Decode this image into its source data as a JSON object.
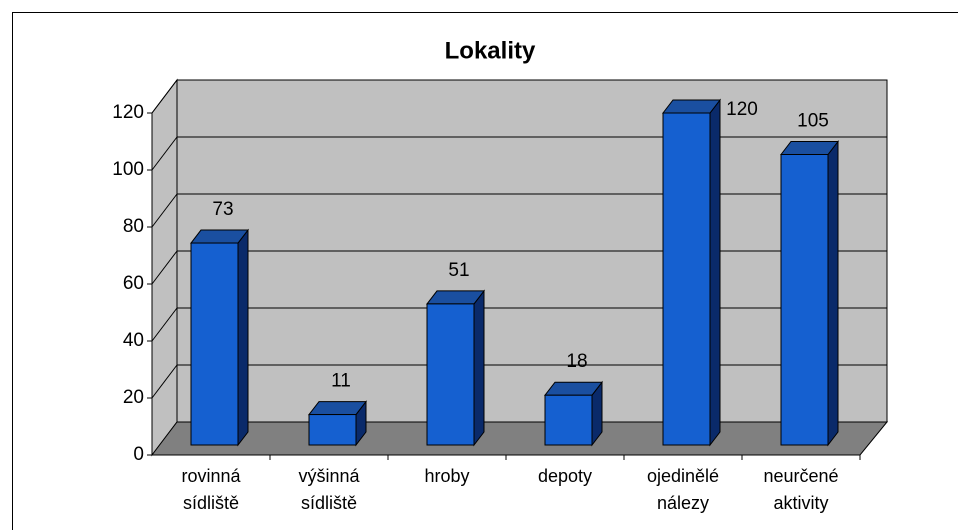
{
  "chart_data": {
    "type": "bar3d",
    "title": "Lokality",
    "categories": [
      "rovinná sídliště",
      "výšinná sídliště",
      "hroby",
      "depoty",
      "ojedinělé nálezy",
      "neurčené aktivity"
    ],
    "values": [
      73,
      11,
      51,
      18,
      120,
      105
    ],
    "color": "#1560d0",
    "ylim": [
      0,
      120
    ],
    "yticks": [
      0,
      20,
      40,
      60,
      80,
      100,
      120
    ],
    "grid": true
  }
}
